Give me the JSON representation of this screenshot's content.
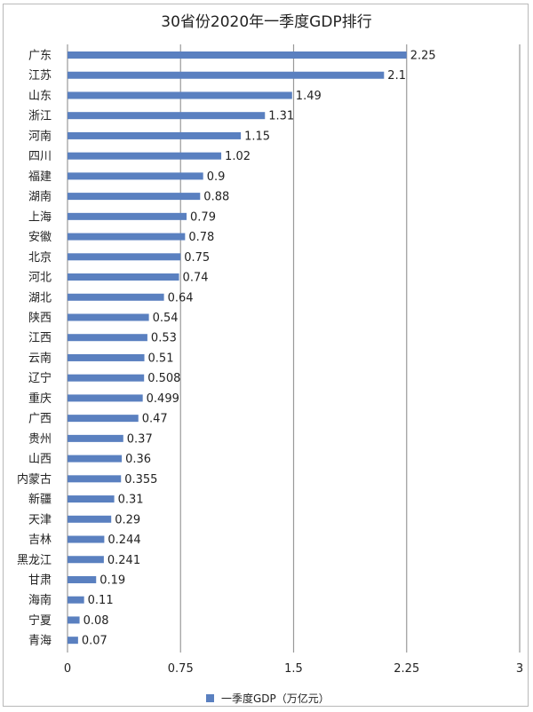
{
  "chart_data": {
    "type": "bar",
    "orientation": "horizontal",
    "title": "30省份2020年一季度GDP排行",
    "categories": [
      "广东",
      "江苏",
      "山东",
      "浙江",
      "河南",
      "四川",
      "福建",
      "湖南",
      "上海",
      "安徽",
      "北京",
      "河北",
      "湖北",
      "陕西",
      "江西",
      "云南",
      "辽宁",
      "重庆",
      "广西",
      "贵州",
      "山西",
      "内蒙古",
      "新疆",
      "天津",
      "吉林",
      "黑龙江",
      "甘肃",
      "海南",
      "宁夏",
      "青海"
    ],
    "series": [
      {
        "name": "一季度GDP（万亿元）",
        "values": [
          2.25,
          2.1,
          1.49,
          1.31,
          1.15,
          1.02,
          0.9,
          0.88,
          0.79,
          0.78,
          0.75,
          0.74,
          0.64,
          0.54,
          0.53,
          0.51,
          0.508,
          0.499,
          0.47,
          0.37,
          0.36,
          0.355,
          0.31,
          0.29,
          0.244,
          0.241,
          0.19,
          0.11,
          0.08,
          0.07
        ],
        "labels": [
          "2.25",
          "2.1",
          "1.49",
          "1.31",
          "1.15",
          "1.02",
          "0.9",
          "0.88",
          "0.79",
          "0.78",
          "0.75",
          "0.74",
          "0.64",
          "0.54",
          "0.53",
          "0.51",
          "0.508",
          "0.499",
          "0.47",
          "0.37",
          "0.36",
          "0.355",
          "0.31",
          "0.29",
          "0.244",
          "0.241",
          "0.19",
          "0.11",
          "0.08",
          "0.07"
        ],
        "color": "#5a80c0"
      }
    ],
    "xlim": [
      0,
      3
    ],
    "x_ticks": [
      "0",
      "0.75",
      "1.5",
      "2.25",
      "3"
    ],
    "grid": true,
    "legend_position": "bottom"
  }
}
